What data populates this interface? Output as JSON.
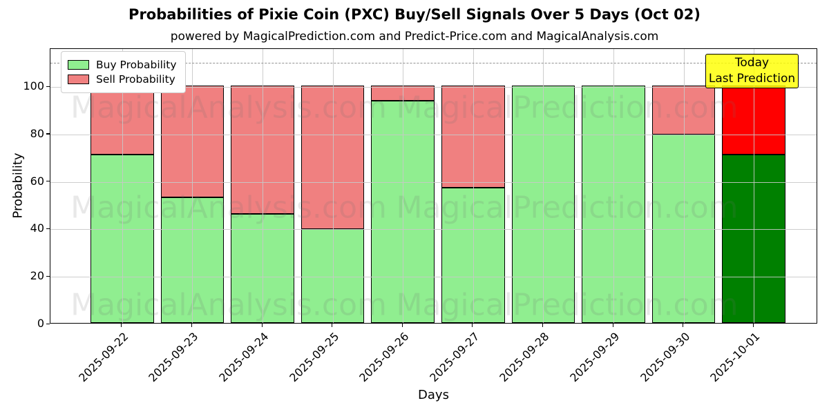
{
  "title": "Probabilities of Pixie Coin (PXC) Buy/Sell Signals Over 5 Days (Oct 02)",
  "subtitle": "powered by MagicalPrediction.com and Predict-Price.com and MagicalAnalysis.com",
  "watermarks": {
    "left_text": "MagicalAnalysis.com",
    "right_text": "MagicalPrediction.com"
  },
  "annotation_box": {
    "line1": "Today",
    "line2": "Last Prediction",
    "bg_color": "#ffff00"
  },
  "legend": [
    {
      "label": "Buy Probability",
      "color": "#90EE90"
    },
    {
      "label": "Sell Probability",
      "color": "#F08080"
    }
  ],
  "chart_data": {
    "type": "bar",
    "stacked": true,
    "title": "Probabilities of Pixie Coin (PXC) Buy/Sell Signals Over 5 Days (Oct 02)",
    "xlabel": "Days",
    "ylabel": "Probability",
    "categories": [
      "2025-09-22",
      "2025-09-23",
      "2025-09-24",
      "2025-09-25",
      "2025-09-26",
      "2025-09-27",
      "2025-09-28",
      "2025-09-29",
      "2025-09-30",
      "2025-10-01"
    ],
    "series": [
      {
        "name": "Buy Probability",
        "values": [
          71,
          53,
          46,
          39.5,
          93.5,
          57,
          100,
          100,
          79.5,
          71
        ],
        "color": "#90EE90",
        "today_color": "#008000"
      },
      {
        "name": "Sell Probability",
        "values": [
          29,
          47,
          54,
          60.5,
          6.5,
          43,
          0,
          0,
          20.5,
          29
        ],
        "color": "#F08080",
        "today_color": "#FF0000"
      }
    ],
    "today_index": 9,
    "ylim": [
      0,
      116
    ],
    "yticks": [
      0,
      20,
      40,
      60,
      80,
      100
    ],
    "threshold_line_y": 110,
    "grid": true,
    "grid_over_bars": true,
    "legend_position": "upper-left",
    "bar_edge_color": "#000000"
  }
}
